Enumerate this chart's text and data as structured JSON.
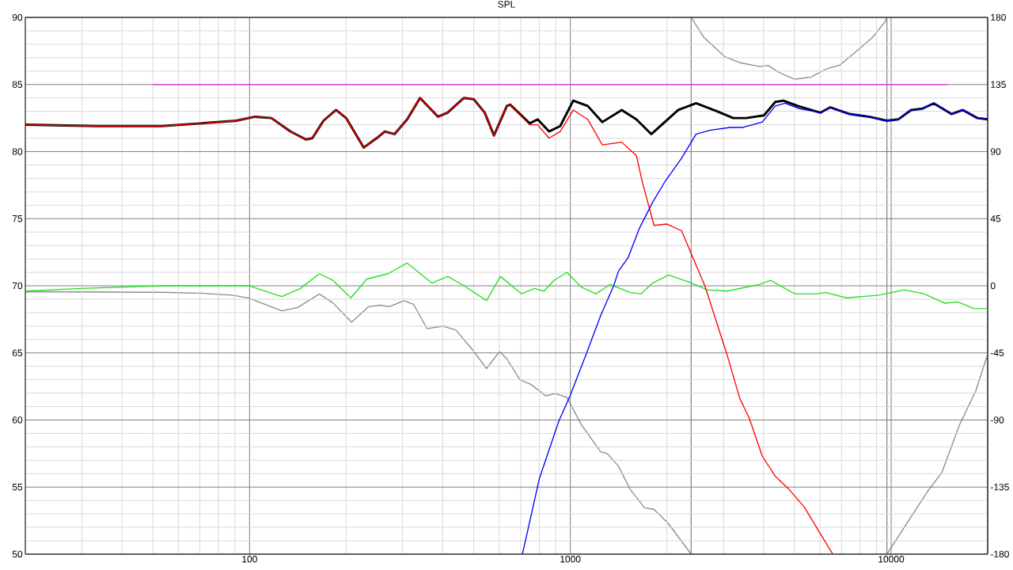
{
  "chart_data": {
    "type": "line",
    "title": "SPL",
    "log": "x",
    "grid": true,
    "xlim": [
      20,
      20000
    ],
    "xticks": [
      100,
      1000,
      10000
    ],
    "ylim": [
      50,
      90
    ],
    "yticks": [
      50,
      55,
      60,
      65,
      70,
      75,
      80,
      85,
      90
    ],
    "y2lim": [
      -180,
      180
    ],
    "y2ticks": [
      -180,
      -135,
      -90,
      -45,
      0,
      45,
      90,
      135,
      180
    ],
    "series": [
      {
        "color": "#8c8c8c",
        "axis": "y2",
        "x": [
          20,
          53.2,
          70.3,
          88.7,
          99.5,
          112,
          126,
          141,
          165,
          182,
          208,
          235,
          255,
          273,
          303,
          325,
          357,
          401,
          440,
          494,
          548,
          601,
          634,
          696,
          756,
          838,
          899,
          975,
          1082,
          1244,
          1303,
          1413,
          1532,
          1702,
          1824,
          2025,
          2380,
          2380,
          2612,
          3039,
          3375,
          3878,
          4141,
          4511,
          5006,
          5623,
          6310,
          6927,
          7961,
          8734,
          9587,
          9700,
          9700,
          11010,
          12960,
          14390,
          16350,
          18350,
          20000
        ],
        "values": [
          -4,
          -4.4,
          -5,
          -6.3,
          -8.3,
          -12.6,
          -16.8,
          -14.7,
          -5.5,
          -11.5,
          -24.4,
          -14,
          -13,
          -14,
          -10,
          -12.6,
          -28.7,
          -27.1,
          -29.7,
          -42.6,
          -55.5,
          -44.1,
          -49,
          -63,
          -66.3,
          -73.8,
          -72.3,
          -74.8,
          -93.1,
          -111.4,
          -112.5,
          -121,
          -136.1,
          -148.9,
          -150,
          -159.7,
          -180,
          180,
          166.4,
          153.5,
          149.6,
          147.1,
          147.7,
          142.7,
          138.5,
          140,
          145.6,
          148.1,
          158.9,
          166.4,
          177.2,
          180,
          -180,
          -161.8,
          -138.2,
          -125.3,
          -93.1,
          -70.6,
          -45.8
        ]
      },
      {
        "color": "#22e022",
        "x": [
          20,
          29.8,
          53.2,
          70.3,
          95,
          99.5,
          112,
          126,
          144,
          165,
          182,
          207,
          232,
          270,
          310,
          370,
          415,
          466,
          548,
          605,
          705,
          773,
          828,
          889,
          975,
          1082,
          1201,
          1334,
          1532,
          1662,
          1803,
          2025,
          2328,
          2676,
          3077,
          3878,
          4207,
          5006,
          5888,
          6237,
          7257,
          9151,
          11010,
          12660,
          14720,
          16160,
          18150,
          20000
        ],
        "values": [
          69.6,
          69.8,
          70,
          70,
          70,
          70,
          69.6,
          69.2,
          69.8,
          70.9,
          70.4,
          69.1,
          70.5,
          70.9,
          71.7,
          70.2,
          70.7,
          70,
          68.9,
          70.7,
          69.4,
          69.8,
          69.6,
          70.4,
          71,
          69.9,
          69.4,
          70.1,
          69.5,
          69.4,
          70.2,
          70.8,
          70.3,
          69.7,
          69.6,
          70.1,
          70.4,
          69.4,
          69.4,
          69.5,
          69.1,
          69.3,
          69.7,
          69.4,
          68.7,
          68.8,
          68.3,
          68.3
        ]
      },
      {
        "color": "#dd44dd",
        "x": [
          50,
          15000
        ],
        "values": [
          85,
          85
        ]
      },
      {
        "color": "#000000",
        "x": [
          20,
          33.4,
          53.2,
          70.3,
          90.8,
          104,
          117,
          134,
          150,
          157,
          170,
          186,
          200,
          227,
          249,
          264,
          283,
          310,
          340,
          387,
          414,
          466,
          500,
          541,
          578,
          634,
          649,
          747,
          791,
          858,
          930,
          1021,
          1133,
          1258,
          1446,
          1606,
          1789,
          2170,
          2466,
          2868,
          3220,
          3532,
          4015,
          4355,
          4614,
          5122,
          6025,
          6463,
          7428,
          8535,
          9698,
          10520,
          11540,
          12520,
          13580,
          15420,
          16730,
          18580,
          20000
        ],
        "values": [
          82,
          81.9,
          81.9,
          82.1,
          82.3,
          82.6,
          82.5,
          81.5,
          80.9,
          81,
          82.3,
          83.1,
          82.5,
          80.3,
          81,
          81.5,
          81.3,
          82.4,
          84,
          82.6,
          82.9,
          84,
          83.9,
          82.9,
          81.2,
          83.4,
          83.5,
          82.1,
          82.4,
          81.5,
          81.9,
          83.8,
          83.4,
          82.2,
          83.1,
          82.4,
          81.3,
          83.1,
          83.6,
          83,
          82.5,
          82.5,
          82.7,
          83.7,
          83.8,
          83.4,
          82.9,
          83.3,
          82.8,
          82.6,
          82.3,
          82.4,
          83.1,
          83.2,
          83.6,
          82.8,
          83.1,
          82.5,
          82.4
        ]
      },
      {
        "color": "#ff0000",
        "x": [
          20,
          33.4,
          53.2,
          70.3,
          90.8,
          104,
          117,
          134,
          150,
          157,
          170,
          186,
          200,
          227,
          249,
          264,
          283,
          310,
          340,
          387,
          414,
          466,
          500,
          541,
          578,
          634,
          649,
          747,
          791,
          858,
          930,
          1021,
          1133,
          1258,
          1446,
          1606,
          1682,
          1824,
          2000,
          2222,
          2410,
          2626,
          3077,
          3375,
          3616,
          3967,
          4355,
          4775,
          5365,
          6025,
          6581
        ],
        "values": [
          82,
          81.9,
          81.9,
          82.1,
          82.3,
          82.6,
          82.5,
          81.5,
          80.9,
          81,
          82.3,
          83.1,
          82.5,
          80.3,
          81,
          81.5,
          81.3,
          82.4,
          84,
          82.6,
          82.9,
          84,
          83.9,
          82.9,
          81.2,
          83.4,
          83.5,
          82,
          82,
          81,
          81.5,
          83.1,
          82.4,
          80.5,
          80.7,
          79.7,
          77.6,
          74.5,
          74.6,
          74.1,
          72.1,
          70,
          64.9,
          61.6,
          60.1,
          57.3,
          55.8,
          54.9,
          53.5,
          51.5,
          50
        ]
      },
      {
        "color": "#0000ff",
        "x": [
          709,
          800,
          920,
          1002,
          1120,
          1244,
          1365,
          1413,
          1514,
          1643,
          1803,
          1977,
          2222,
          2466,
          2737,
          3147,
          3451,
          3967,
          4355,
          4667,
          5183,
          6025,
          6463,
          7428,
          8535,
          9698,
          10520,
          11540,
          12520,
          13580,
          15420,
          16730,
          18580,
          20000
        ],
        "values": [
          50,
          55.6,
          59.9,
          61.9,
          64.9,
          67.8,
          70,
          71.1,
          72.1,
          74.3,
          76.2,
          77.8,
          79.5,
          81.3,
          81.6,
          81.8,
          81.8,
          82.2,
          83.4,
          83.6,
          83.2,
          82.9,
          83.3,
          82.8,
          82.6,
          82.3,
          82.4,
          83.1,
          83.2,
          83.6,
          82.8,
          83.1,
          82.5,
          82.4
        ]
      }
    ]
  }
}
